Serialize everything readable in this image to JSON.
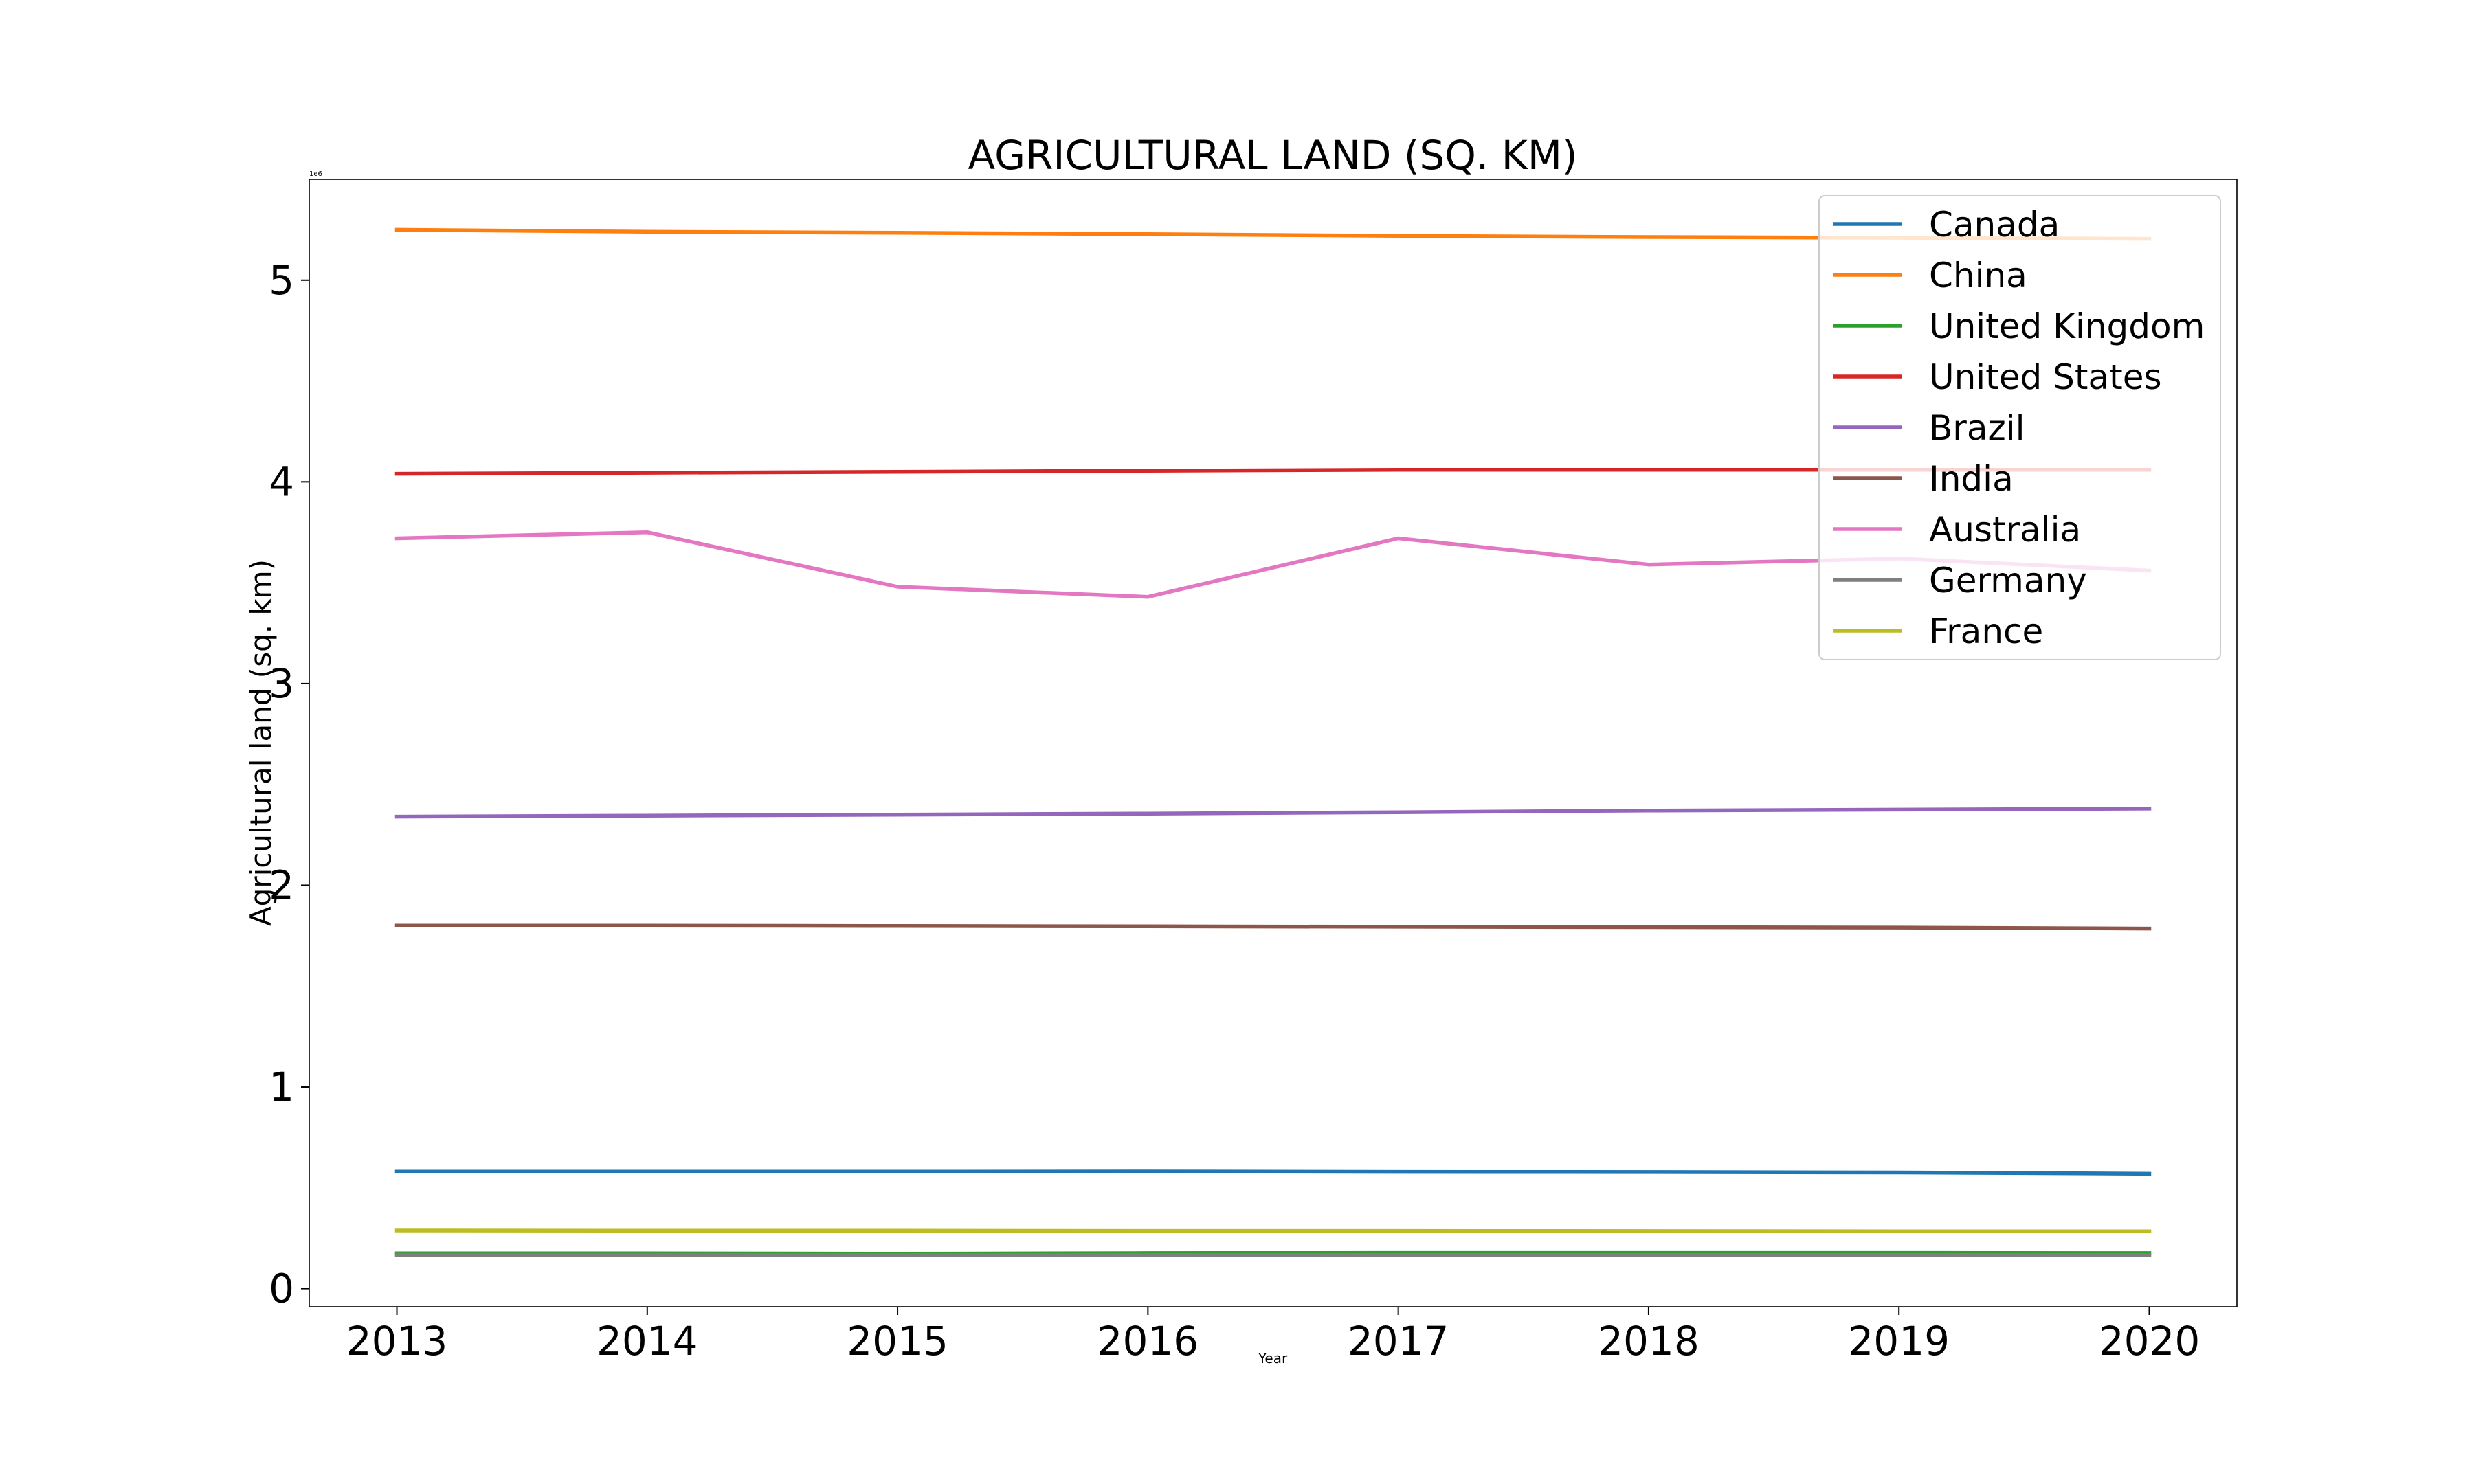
{
  "chart_data": {
    "type": "line",
    "title": "AGRICULTURAL LAND (SQ. KM)",
    "xlabel": "Year",
    "ylabel": "Agricultural land (sq. km)",
    "y_offset_label": "1e6",
    "x": [
      2013,
      2014,
      2015,
      2016,
      2017,
      2018,
      2019,
      2020
    ],
    "x_ticks": [
      "2013",
      "2014",
      "2015",
      "2016",
      "2017",
      "2018",
      "2019",
      "2020"
    ],
    "y_ticks": [
      "0",
      "1",
      "2",
      "3",
      "4",
      "5"
    ],
    "y_tick_values": [
      0,
      1000000,
      2000000,
      3000000,
      4000000,
      5000000
    ],
    "xlim": [
      2012.65,
      2020.35
    ],
    "ylim": [
      -90000,
      5500000
    ],
    "grid": false,
    "legend_position": "top-right",
    "series": [
      {
        "name": "Canada",
        "color": "#1f77b4",
        "values": [
          580000,
          580000,
          580000,
          581000,
          579000,
          578000,
          576000,
          570000
        ]
      },
      {
        "name": "China",
        "color": "#ff7f0e",
        "values": [
          5250000,
          5240000,
          5235000,
          5228000,
          5220000,
          5214000,
          5210000,
          5205000
        ]
      },
      {
        "name": "United Kingdom",
        "color": "#2ca02c",
        "values": [
          175000,
          175000,
          173000,
          176000,
          177000,
          177000,
          177000,
          176000
        ]
      },
      {
        "name": "United States",
        "color": "#d62728",
        "values": [
          4040000,
          4045000,
          4050000,
          4055000,
          4060000,
          4060000,
          4060000,
          4060000
        ]
      },
      {
        "name": "Brazil",
        "color": "#9467bd",
        "values": [
          2340000,
          2345000,
          2350000,
          2355000,
          2362000,
          2370000,
          2375000,
          2380000
        ]
      },
      {
        "name": "India",
        "color": "#8c564b",
        "values": [
          1800000,
          1800000,
          1798000,
          1796000,
          1794000,
          1792000,
          1790000,
          1785000
        ]
      },
      {
        "name": "Australia",
        "color": "#e377c2",
        "values": [
          3720000,
          3750000,
          3480000,
          3430000,
          3720000,
          3590000,
          3620000,
          3560000
        ]
      },
      {
        "name": "Germany",
        "color": "#7f7f7f",
        "values": [
          167000,
          167000,
          166000,
          166000,
          166000,
          166000,
          166000,
          166000
        ]
      },
      {
        "name": "France",
        "color": "#bcbd22",
        "values": [
          288000,
          287000,
          287000,
          286000,
          286000,
          285000,
          284000,
          284000
        ]
      }
    ]
  }
}
